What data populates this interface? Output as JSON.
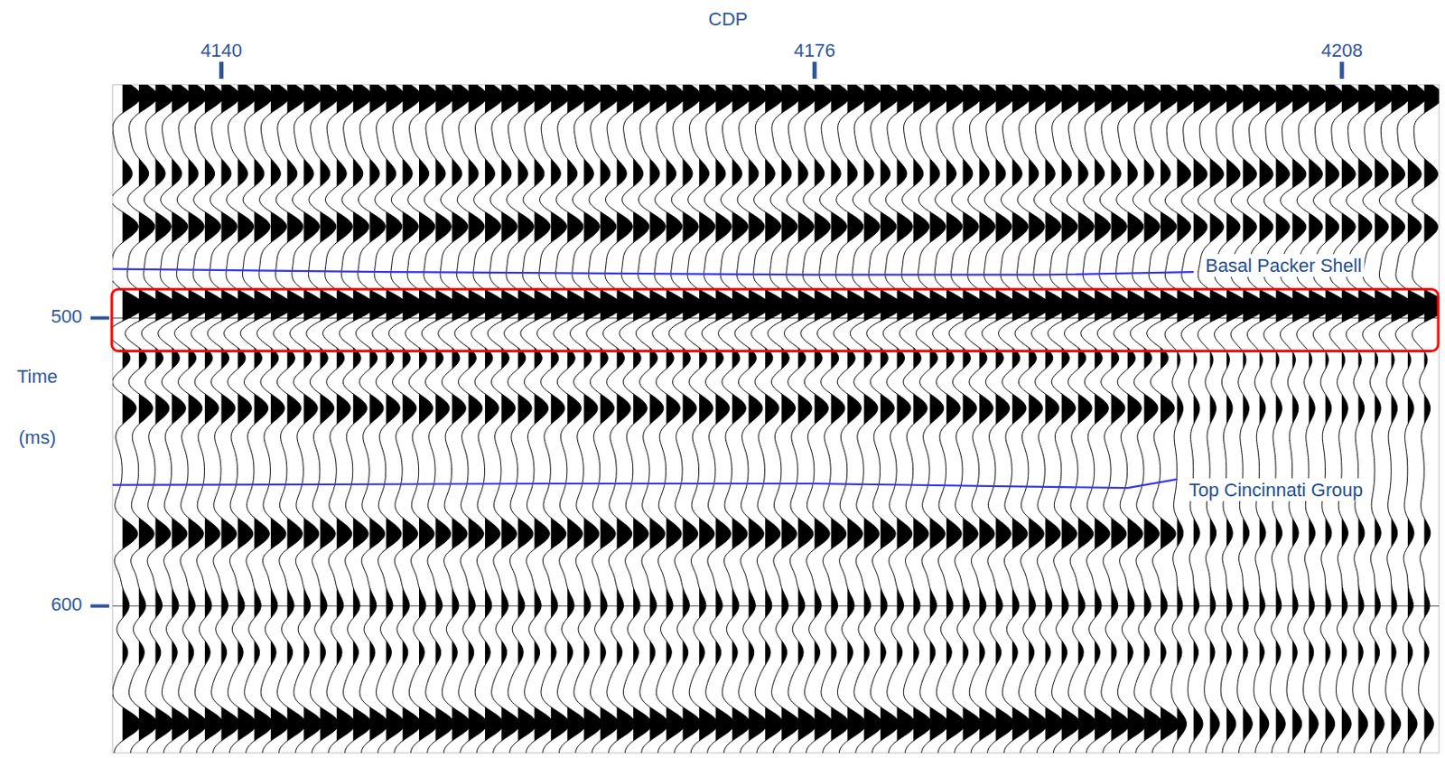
{
  "chart_data": {
    "type": "seismic_wiggle",
    "x_label": "CDP",
    "y_label": "Time",
    "y_label_unit": "(ms)",
    "xlim": [
      4133.4,
      4213.9
    ],
    "xticks": [
      4140,
      4176,
      4208
    ],
    "ylim": [
      419,
      651
    ],
    "yticks": [
      500,
      600
    ],
    "grid": true,
    "x": [
      4134,
      4135,
      4136,
      4137,
      4138,
      4139,
      4140,
      4141,
      4142,
      4143,
      4144,
      4145,
      4146,
      4147,
      4148,
      4149,
      4150,
      4151,
      4152,
      4153,
      4154,
      4155,
      4156,
      4157,
      4158,
      4159,
      4160,
      4161,
      4162,
      4163,
      4164,
      4165,
      4166,
      4167,
      4168,
      4169,
      4170,
      4171,
      4172,
      4173,
      4174,
      4175,
      4176,
      4177,
      4178,
      4179,
      4180,
      4181,
      4182,
      4183,
      4184,
      4185,
      4186,
      4187,
      4188,
      4189,
      4190,
      4191,
      4192,
      4193,
      4194,
      4195,
      4196,
      4197,
      4198,
      4199,
      4200,
      4201,
      4202,
      4203,
      4204,
      4205,
      4206,
      4207,
      4208,
      4209,
      4210,
      4211,
      4212,
      4213
    ],
    "east_from": 4198,
    "events": [
      {
        "time": 423,
        "amplitude": 1.0,
        "amplitude_east": 1.0
      },
      {
        "time": 450.4,
        "amplitude": 0.6,
        "amplitude_east": 0.8
      },
      {
        "time": 468,
        "amplitude": 0.9,
        "amplitude_east": 0.8
      },
      {
        "time": 496,
        "amplitude": 1.2,
        "amplitude_east": 1.25
      },
      {
        "time": 513.8,
        "amplitude": 0.6,
        "amplitude_east": 0.3
      },
      {
        "time": 531,
        "amplitude": 0.8,
        "amplitude_east": 0.35
      },
      {
        "time": 575.2,
        "amplitude": 0.9,
        "amplitude_east": 0.4
      },
      {
        "time": 589.6,
        "amplitude": 0.35,
        "amplitude_east": 0.3
      },
      {
        "time": 600.2,
        "amplitude": 0.6,
        "amplitude_east": 0.5
      },
      {
        "time": 615.2,
        "amplitude": 0.4,
        "amplitude_east": 0.35
      },
      {
        "time": 640.9,
        "amplitude": 1.0,
        "amplitude_east": 0.5
      }
    ],
    "series": [
      {
        "name": "Basal Packer Shell",
        "color": "#3535e8",
        "x": [
          4133.4,
          4150,
          4176,
          4190,
          4199
        ],
        "values": [
          483,
          484,
          485,
          485,
          484
        ]
      },
      {
        "name": "Top Cincinnati Group",
        "color": "#3535e8",
        "x": [
          4133.4,
          4160,
          4176,
          4195,
          4198
        ],
        "values": [
          558,
          557.5,
          557.5,
          559,
          556
        ]
      }
    ],
    "highlight_box": {
      "values": [
        490,
        511.5
      ],
      "color": "#ff0000"
    }
  }
}
